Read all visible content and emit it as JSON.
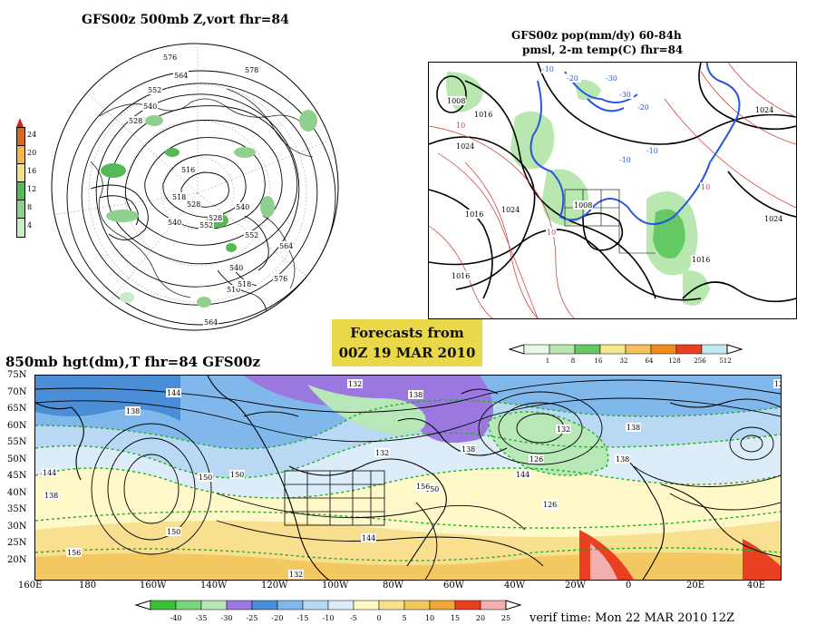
{
  "top_left": {
    "title": "GFS00z   500mb  Z,vort     fhr=84",
    "colorbar_ticks": [
      "24",
      "20",
      "16",
      "12",
      "8",
      "4"
    ],
    "colorbar_colors": [
      "#d46a1c",
      "#f4b84a",
      "#f1df8a",
      "#56b856",
      "#8fd08f",
      "#c8ecc8"
    ],
    "contour_labels": [
      "576",
      "578",
      "564",
      "552",
      "540",
      "528",
      "516",
      "518",
      "528",
      "540",
      "552",
      "564",
      "576",
      "540",
      "510",
      "518",
      "528",
      "540",
      "552",
      "564"
    ]
  },
  "top_right": {
    "title_line1": "GFS00z pop(mm/dy) 60-84h",
    "title_line2": "pmsl, 2-m temp(C)  fhr=84",
    "isobar_labels": [
      "1008",
      "1016",
      "1024",
      "1008",
      "1024",
      "1016",
      "1016",
      "1024",
      "1016",
      "1024"
    ],
    "temp_labels": [
      "-10",
      "-20",
      "-30",
      "-30",
      "-20",
      "-10",
      "10",
      "10",
      "-10",
      "10"
    ],
    "colorbar_ticks": [
      "1",
      "8",
      "16",
      "32",
      "64",
      "128",
      "256",
      "512"
    ],
    "colorbar_colors": [
      "#e8f8e8",
      "#b8e8b0",
      "#64c864",
      "#f4e890",
      "#f4c060",
      "#f08c20",
      "#e84020",
      "#c0e8f0"
    ]
  },
  "forecast_box": {
    "line1": "Forecasts from",
    "line2": "00Z 19 MAR 2010"
  },
  "bottom": {
    "title": "850mb hgt(dm),T  fhr=84 GFS00z",
    "lat_labels": [
      "75N",
      "70N",
      "65N",
      "60N",
      "55N",
      "50N",
      "45N",
      "40N",
      "35N",
      "30N",
      "25N",
      "20N"
    ],
    "lon_labels": [
      "160E",
      "180",
      "160W",
      "140W",
      "120W",
      "100W",
      "80W",
      "60W",
      "40W",
      "20W",
      "0",
      "20E",
      "40E"
    ],
    "contour_labels": [
      "144",
      "138",
      "132",
      "138",
      "132",
      "138",
      "150",
      "126",
      "132",
      "138",
      "144",
      "150",
      "156",
      "150",
      "144",
      "156",
      "132",
      "126",
      "144",
      "138",
      "150",
      "138",
      "12"
    ],
    "colorbar_ticks": [
      "-40",
      "-35",
      "-30",
      "-25",
      "-20",
      "-15",
      "-10",
      "-5",
      "0",
      "5",
      "10",
      "15",
      "20",
      "25"
    ],
    "colorbar_colors": [
      "#3cc03c",
      "#7ad47a",
      "#b8e8b8",
      "#9a78e0",
      "#4a8ed8",
      "#80b8ec",
      "#b8d8f4",
      "#dcecf8",
      "#fff8c8",
      "#f8e090",
      "#f4c860",
      "#f0a838",
      "#e84020",
      "#f4b0b0"
    ],
    "verif_time": "verif time: Mon 22 MAR 2010 12Z"
  }
}
